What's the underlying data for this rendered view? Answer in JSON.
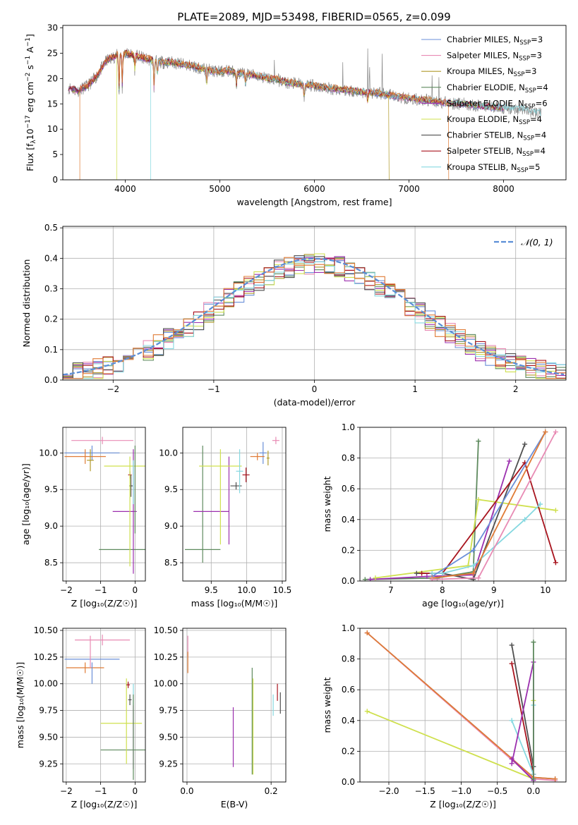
{
  "figure": {
    "title": "PLATE=2089, MJD=53498, FIBERID=0565, z=0.099"
  },
  "colors": {
    "Chabrier MILES": "#6a8fd8",
    "Salpeter MILES": "#e88bb4",
    "Kroupa MILES": "#b09a2c",
    "Chabrier ELODIE": "#5e8a5e",
    "Salpeter ELODIE": "#9b2fae",
    "Kroupa ELODIE": "#cfe04e",
    "Chabrier STELIB": "#4f4f4f",
    "Salpeter STELIB": "#a8141e",
    "Kroupa STELIB": "#86d8e0",
    "orange": "#e07b35",
    "gray": "#888888",
    "normal": "#5b8ed6"
  },
  "chart_data": [
    {
      "id": "spectrum",
      "type": "line",
      "xlabel": "wavelength [Angstrom, rest frame]",
      "ylabel_parts": [
        "Flux [f",
        "λ",
        "10",
        "−17",
        " erg cm",
        "−2",
        " s",
        "−1",
        " A",
        "−1",
        "]"
      ],
      "xlim": [
        3340,
        8660
      ],
      "ylim": [
        0,
        30.5
      ],
      "xticks": [
        4000,
        5000,
        6000,
        7000,
        8000
      ],
      "yticks": [
        0,
        5,
        10,
        15,
        20,
        25,
        30
      ],
      "grid": false,
      "legend_position": "top-right",
      "legend": [
        {
          "label": "Chabrier MILES",
          "nssp": "3"
        },
        {
          "label": "Salpeter MILES",
          "nssp": "3"
        },
        {
          "label": "Kroupa MILES",
          "nssp": "3"
        },
        {
          "label": "Chabrier ELODIE",
          "nssp": "4"
        },
        {
          "label": "Salpeter ELODIE",
          "nssp": "6"
        },
        {
          "label": "Kroupa ELODIE",
          "nssp": "4"
        },
        {
          "label": "Chabrier STELIB",
          "nssp": "4"
        },
        {
          "label": "Salpeter STELIB",
          "nssp": "4"
        },
        {
          "label": "Kroupa STELIB",
          "nssp": "5"
        }
      ],
      "continuum_x": [
        3400,
        3500,
        3600,
        3700,
        3800,
        3900,
        4000,
        4100,
        4200,
        4300,
        4400,
        4500,
        4600,
        4700,
        4800,
        4900,
        5000,
        5100,
        5200,
        5300,
        5400,
        5500,
        5600,
        5700,
        5800,
        5900,
        6000,
        6100,
        6200,
        6300,
        6400,
        6500,
        6600,
        6700,
        6800,
        6900,
        7000,
        7100,
        7200,
        7300,
        7400,
        7500,
        7600,
        7700,
        7800,
        7900,
        8000,
        8100,
        8200,
        8300,
        8400
      ],
      "continuum_y": [
        18.2,
        17.6,
        18.5,
        20.5,
        23.5,
        24.5,
        25.0,
        24.5,
        24.0,
        23.5,
        23.2,
        23.2,
        22.8,
        22.5,
        22.0,
        21.6,
        21.3,
        21.6,
        21.0,
        20.8,
        20.6,
        20.0,
        19.8,
        19.2,
        19.0,
        18.7,
        18.6,
        18.2,
        18.0,
        17.8,
        17.6,
        17.3,
        17.2,
        17.0,
        16.6,
        16.3,
        16.1,
        15.8,
        15.7,
        15.4,
        15.2,
        15.1,
        14.9,
        14.7,
        14.5,
        14.3,
        14.2,
        14.0,
        13.9,
        13.5,
        13.0
      ],
      "absorption_lines": [
        {
          "x": 3934,
          "depth": 8
        },
        {
          "x": 3969,
          "depth": 7
        },
        {
          "x": 4102,
          "depth": 3
        },
        {
          "x": 4305,
          "depth": 6
        },
        {
          "x": 4340,
          "depth": 3
        },
        {
          "x": 4861,
          "depth": 3
        },
        {
          "x": 5175,
          "depth": 3
        },
        {
          "x": 5270,
          "depth": 2
        },
        {
          "x": 5892,
          "depth": 3
        },
        {
          "x": 6563,
          "depth": 2
        }
      ],
      "emission_lines": [
        {
          "x": 4861,
          "height": 6
        },
        {
          "x": 5577,
          "height": 4
        },
        {
          "x": 6300,
          "height": 5
        },
        {
          "x": 6563,
          "height": 12
        },
        {
          "x": 6583,
          "height": 6
        },
        {
          "x": 6717,
          "height": 8
        },
        {
          "x": 7245,
          "height": 7
        },
        {
          "x": 7316,
          "height": 6
        }
      ],
      "dropouts": [
        {
          "x": 3520,
          "series": "orange"
        },
        {
          "x": 3910,
          "series": "Kroupa ELODIE"
        },
        {
          "x": 4270,
          "series": "Kroupa STELIB"
        },
        {
          "x": 6790,
          "series": "Kroupa MILES"
        },
        {
          "x": 7420,
          "series": "orange"
        }
      ]
    },
    {
      "id": "residuals",
      "type": "step",
      "xlabel": "(data-model)/error",
      "ylabel": "Normed distribution",
      "xlim": [
        -2.5,
        2.5
      ],
      "ylim": [
        0,
        0.505
      ],
      "xticks": [
        -2,
        -1,
        0,
        1,
        2
      ],
      "yticks": [
        0.0,
        0.1,
        0.2,
        0.3,
        0.4,
        0.5
      ],
      "grid": true,
      "legend_position": "top-right",
      "normal_label": "𝒩(0, 1)",
      "bin_width": 0.1,
      "series_order": [
        "Chabrier MILES",
        "Salpeter MILES",
        "Kroupa MILES",
        "Chabrier ELODIE",
        "Salpeter ELODIE",
        "Kroupa ELODIE",
        "Chabrier STELIB",
        "Salpeter STELIB",
        "Kroupa STELIB",
        "orange"
      ]
    },
    {
      "id": "age_vs_Z",
      "type": "errorbar",
      "xlabel": "Z [log₁₀(Z/Z☉)]",
      "ylabel": "age  [log₁₀(age/yr)]",
      "xlim": [
        -2.1,
        0.3
      ],
      "ylim": [
        8.25,
        10.35
      ],
      "xticks": [
        -2,
        -1,
        0
      ],
      "yticks": [
        8.5,
        9.0,
        9.5,
        10.0
      ],
      "grid": true,
      "points": [
        {
          "s": "Chabrier MILES",
          "x": -1.25,
          "y": 10.0,
          "xerr": 0.8,
          "yerr": 0.1
        },
        {
          "s": "Salpeter MILES",
          "x": -0.95,
          "y": 10.17,
          "xerr": 0.9,
          "yerr": 0.05
        },
        {
          "s": "orange",
          "x": -1.45,
          "y": 9.95,
          "xerr": 0.6,
          "yerr": 0.1
        },
        {
          "s": "Kroupa MILES",
          "x": -1.3,
          "y": 9.9,
          "xerr": 0.1,
          "yerr": 0.15
        },
        {
          "s": "Kroupa ELODIE",
          "x": -0.3,
          "y": 9.82,
          "xerr": 0.6,
          "yerr": 0.0
        },
        {
          "s": "Salpeter STELIB",
          "x": -0.15,
          "y": 9.7,
          "xerr": 0.05,
          "yerr": 0.05
        },
        {
          "s": "Chabrier STELIB",
          "x": -0.12,
          "y": 9.55,
          "xerr": 0.05,
          "yerr": 0.15
        },
        {
          "s": "Salpeter ELODIE",
          "x": -0.3,
          "y": 9.2,
          "xerr": 0.35,
          "yerr": 0.0
        },
        {
          "s": "Chabrier ELODIE",
          "x": -0.2,
          "y": 8.68,
          "xerr": 0.85,
          "yerr": 0.0
        },
        {
          "s": "Kroupa ELODIE",
          "x": -0.15,
          "y": 9.2,
          "xerr": 0.0,
          "yerr": 0.75
        },
        {
          "s": "Salpeter ELODIE",
          "x": -0.05,
          "y": 9.2,
          "xerr": 0.0,
          "yerr": 0.85
        },
        {
          "s": "Chabrier ELODIE",
          "x": 0.0,
          "y": 9.5,
          "xerr": 0.0,
          "yerr": 0.6
        },
        {
          "s": "Kroupa STELIB",
          "x": -0.05,
          "y": 9.6,
          "xerr": 0.0,
          "yerr": 0.3
        }
      ]
    },
    {
      "id": "age_vs_mass",
      "type": "errorbar",
      "xlabel": "mass [log₁₀(M/M☉)]",
      "ylabel": "",
      "xlim": [
        9.1,
        10.55
      ],
      "ylim": [
        8.25,
        10.35
      ],
      "xticks": [
        9.5,
        10.0,
        10.5
      ],
      "yticks": [
        8.5,
        9.0,
        9.5,
        10.0
      ],
      "grid": true,
      "points": [
        {
          "s": "Chabrier ELODIE",
          "x": 9.38,
          "y": 8.68,
          "xerr": 0.25,
          "yerr": 0.0
        },
        {
          "s": "Chabrier ELODIE",
          "x": 9.38,
          "y": 9.3,
          "xerr": 0.0,
          "yerr": 0.8
        },
        {
          "s": "Salpeter ELODIE",
          "x": 9.5,
          "y": 9.2,
          "xerr": 0.25,
          "yerr": 0.0
        },
        {
          "s": "Salpeter ELODIE",
          "x": 9.75,
          "y": 9.35,
          "xerr": 0.0,
          "yerr": 0.6
        },
        {
          "s": "Kroupa ELODIE",
          "x": 9.63,
          "y": 9.82,
          "xerr": 0.3,
          "yerr": 0.0
        },
        {
          "s": "Kroupa ELODIE",
          "x": 9.63,
          "y": 9.4,
          "xerr": 0.0,
          "yerr": 0.65
        },
        {
          "s": "Chabrier STELIB",
          "x": 9.85,
          "y": 9.55,
          "xerr": 0.08,
          "yerr": 0.05
        },
        {
          "s": "Kroupa STELIB",
          "x": 9.9,
          "y": 9.75,
          "xerr": 0.05,
          "yerr": 0.3
        },
        {
          "s": "Salpeter STELIB",
          "x": 9.99,
          "y": 9.7,
          "xerr": 0.05,
          "yerr": 0.1
        },
        {
          "s": "Chabrier MILES",
          "x": 10.23,
          "y": 10.0,
          "xerr": 0.05,
          "yerr": 0.15
        },
        {
          "s": "Salpeter MILES",
          "x": 10.41,
          "y": 10.17,
          "xerr": 0.05,
          "yerr": 0.05
        },
        {
          "s": "orange",
          "x": 10.15,
          "y": 9.95,
          "xerr": 0.1,
          "yerr": 0.05
        },
        {
          "s": "Kroupa MILES",
          "x": 10.3,
          "y": 9.93,
          "xerr": 0.02,
          "yerr": 0.1
        }
      ]
    },
    {
      "id": "weight_vs_age",
      "type": "line",
      "xlabel": "age  [log₁₀(age/yr)]",
      "ylabel": "mass weight",
      "xlim": [
        6.4,
        10.4
      ],
      "ylim": [
        0,
        1.0
      ],
      "xticks": [
        7,
        8,
        9,
        10
      ],
      "yticks": [
        0.0,
        0.2,
        0.4,
        0.6,
        0.8,
        1.0
      ],
      "grid": true,
      "series": [
        {
          "s": "Chabrier ELODIE",
          "x": [
            6.5,
            7.9,
            8.6,
            8.7
          ],
          "y": [
            0.01,
            0.02,
            0.06,
            0.91
          ]
        },
        {
          "s": "Salpeter ELODIE",
          "x": [
            6.6,
            7.7,
            8.6,
            9.3
          ],
          "y": [
            0.01,
            0.03,
            0.04,
            0.78
          ]
        },
        {
          "s": "Kroupa ELODIE",
          "x": [
            6.7,
            8.5,
            8.7,
            10.2
          ],
          "y": [
            0.02,
            0.1,
            0.53,
            0.46
          ]
        },
        {
          "s": "Chabrier STELIB",
          "x": [
            7.5,
            8.0,
            8.6,
            9.6
          ],
          "y": [
            0.05,
            0.05,
            0.01,
            0.89
          ]
        },
        {
          "s": "Salpeter STELIB",
          "x": [
            7.6,
            8.0,
            9.6,
            10.2
          ],
          "y": [
            0.05,
            0.05,
            0.77,
            0.12
          ]
        },
        {
          "s": "Kroupa STELIB",
          "x": [
            7.8,
            8.0,
            8.6,
            9.6,
            9.9
          ],
          "y": [
            0.05,
            0.05,
            0.1,
            0.4,
            0.5
          ]
        },
        {
          "s": "Chabrier MILES",
          "x": [
            7.8,
            8.6,
            10.0
          ],
          "y": [
            0.03,
            0.2,
            0.97
          ]
        },
        {
          "s": "orange",
          "x": [
            7.8,
            8.6,
            10.0
          ],
          "y": [
            0.02,
            0.05,
            0.97
          ]
        },
        {
          "s": "Salpeter MILES",
          "x": [
            7.8,
            8.7,
            10.2
          ],
          "y": [
            0.01,
            0.02,
            0.97
          ]
        }
      ]
    },
    {
      "id": "mass_vs_Z",
      "type": "errorbar",
      "xlabel": "Z [log₁₀(Z/Z☉)]",
      "ylabel": "mass [log₁₀(M/M☉)]",
      "xlim": [
        -2.1,
        0.3
      ],
      "ylim": [
        9.08,
        10.52
      ],
      "xticks": [
        -2,
        -1,
        0
      ],
      "yticks": [
        9.25,
        9.5,
        9.75,
        10.0,
        10.25,
        10.5
      ],
      "grid": true,
      "points": [
        {
          "s": "Salpeter MILES",
          "x": -0.95,
          "y": 10.41,
          "xerr": 0.8,
          "yerr": 0.05
        },
        {
          "s": "Chabrier MILES",
          "x": -1.25,
          "y": 10.23,
          "xerr": 0.8,
          "yerr": 0.0
        },
        {
          "s": "orange",
          "x": -1.45,
          "y": 10.15,
          "xerr": 0.55,
          "yerr": 0.05
        },
        {
          "s": "Salpeter MILES",
          "x": -1.3,
          "y": 10.3,
          "xerr": 0.0,
          "yerr": 0.15
        },
        {
          "s": "Chabrier MILES",
          "x": -1.25,
          "y": 10.1,
          "xerr": 0.0,
          "yerr": 0.1
        },
        {
          "s": "Kroupa ELODIE",
          "x": -0.4,
          "y": 9.63,
          "xerr": 0.6,
          "yerr": 0.0
        },
        {
          "s": "Chabrier ELODIE",
          "x": -0.25,
          "y": 9.38,
          "xerr": 0.75,
          "yerr": 0.0
        },
        {
          "s": "Kroupa ELODIE",
          "x": -0.25,
          "y": 9.65,
          "xerr": 0.0,
          "yerr": 0.4
        },
        {
          "s": "Salpeter STELIB",
          "x": -0.2,
          "y": 9.99,
          "xerr": 0.05,
          "yerr": 0.03
        },
        {
          "s": "Chabrier STELIB",
          "x": -0.15,
          "y": 9.85,
          "xerr": 0.05,
          "yerr": 0.05
        },
        {
          "s": "Kroupa STELIB",
          "x": -0.05,
          "y": 9.9,
          "xerr": 0.0,
          "yerr": 0.1
        },
        {
          "s": "Salpeter ELODIE",
          "x": -0.05,
          "y": 9.5,
          "xerr": 0.0,
          "yerr": 0.3
        },
        {
          "s": "Chabrier ELODIE",
          "x": -0.05,
          "y": 9.5,
          "xerr": 0.0,
          "yerr": 0.4
        }
      ]
    },
    {
      "id": "mass_vs_ebv",
      "type": "errorbar",
      "xlabel": "E(B-V)",
      "ylabel": "",
      "xlim": [
        -0.01,
        0.235
      ],
      "ylim": [
        9.08,
        10.52
      ],
      "xticks": [
        0.0,
        0.2
      ],
      "yticks": [
        9.25,
        9.5,
        9.75,
        10.0,
        10.25,
        10.5
      ],
      "grid": true,
      "points": [
        {
          "s": "Salpeter MILES",
          "x": 0.002,
          "y": 10.35,
          "xerr": 0.0,
          "yerr": 0.1
        },
        {
          "s": "orange",
          "x": 0.002,
          "y": 10.2,
          "xerr": 0.0,
          "yerr": 0.1
        },
        {
          "s": "Salpeter ELODIE",
          "x": 0.11,
          "y": 9.5,
          "xerr": 0.0,
          "yerr": 0.28
        },
        {
          "s": "Chabrier ELODIE",
          "x": 0.155,
          "y": 9.65,
          "xerr": 0.0,
          "yerr": 0.5
        },
        {
          "s": "Kroupa ELODIE",
          "x": 0.157,
          "y": 9.6,
          "xerr": 0.0,
          "yerr": 0.45
        },
        {
          "s": "Kroupa STELIB",
          "x": 0.205,
          "y": 9.8,
          "xerr": 0.0,
          "yerr": 0.1
        },
        {
          "s": "Salpeter STELIB",
          "x": 0.215,
          "y": 9.92,
          "xerr": 0.0,
          "yerr": 0.08
        },
        {
          "s": "Chabrier STELIB",
          "x": 0.222,
          "y": 9.82,
          "xerr": 0.0,
          "yerr": 0.1
        }
      ]
    },
    {
      "id": "weight_vs_Z",
      "type": "line",
      "xlabel": "Z [log₁₀(Z/Z☉)]",
      "ylabel": "mass weight",
      "xlim": [
        -2.4,
        0.45
      ],
      "ylim": [
        0,
        1.0
      ],
      "xticks": [
        -2.0,
        -1.5,
        -1.0,
        -0.5,
        0.0
      ],
      "yticks": [
        0.0,
        0.2,
        0.4,
        0.6,
        0.8,
        1.0
      ],
      "grid": true,
      "series": [
        {
          "s": "Chabrier MILES",
          "x": [
            -2.3,
            0.0,
            0.3
          ],
          "y": [
            0.97,
            0.03,
            0.02
          ]
        },
        {
          "s": "Salpeter MILES",
          "x": [
            -2.3,
            0.0,
            0.3
          ],
          "y": [
            0.97,
            0.02,
            0.01
          ]
        },
        {
          "s": "orange",
          "x": [
            -2.3,
            0.0,
            0.3
          ],
          "y": [
            0.97,
            0.03,
            0.02
          ]
        },
        {
          "s": "Kroupa ELODIE",
          "x": [
            -2.3,
            0.0,
            0.0
          ],
          "y": [
            0.46,
            0.02,
            0.53
          ]
        },
        {
          "s": "Salpeter STELIB",
          "x": [
            -0.3,
            0.0
          ],
          "y": [
            0.77,
            0.05
          ]
        },
        {
          "s": "Chabrier STELIB",
          "x": [
            -0.3,
            0.0
          ],
          "y": [
            0.89,
            0.1
          ]
        },
        {
          "s": "Kroupa STELIB",
          "x": [
            -0.3,
            0.0,
            0.0
          ],
          "y": [
            0.4,
            0.05,
            0.5
          ]
        },
        {
          "s": "Salpeter ELODIE",
          "x": [
            -0.3,
            0.0,
            0.0,
            -0.3
          ],
          "y": [
            0.15,
            0.01,
            0.78,
            0.12
          ]
        },
        {
          "s": "Chabrier ELODIE",
          "x": [
            0.0,
            0.0
          ],
          "y": [
            0.91,
            0.02
          ]
        }
      ]
    }
  ]
}
